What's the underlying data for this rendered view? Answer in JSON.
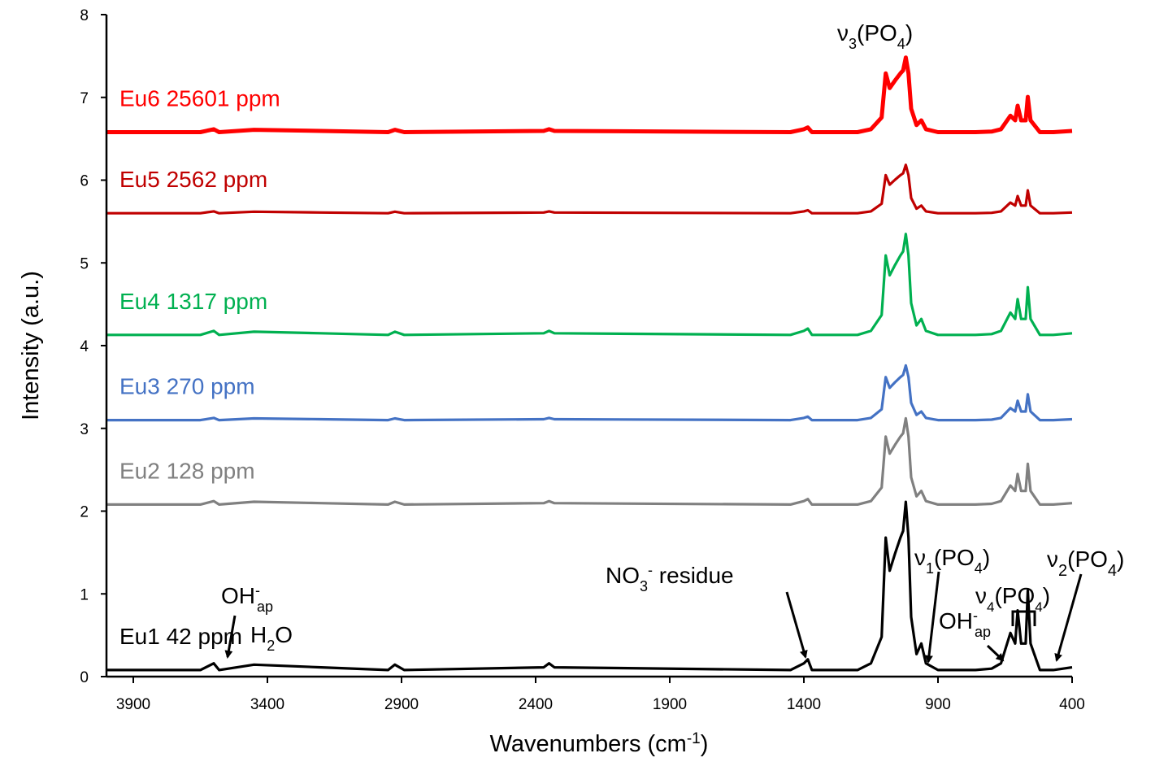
{
  "chart_data": {
    "type": "line",
    "xlabel": "Wavenumbers (cm",
    "xlabel_sup": "-1",
    "xlabel_end": ")",
    "ylabel": "Intensity (a.u.)",
    "xlim": [
      4000,
      400
    ],
    "x_reversed": true,
    "ylim": [
      0,
      8
    ],
    "x_ticks": [
      3900,
      3400,
      2900,
      2400,
      1900,
      1400,
      900,
      400
    ],
    "y_ticks": [
      0,
      1,
      2,
      3,
      4,
      5,
      6,
      7,
      8
    ],
    "grid": false,
    "legend": "inline labels",
    "peak_template": [
      [
        4000,
        0
      ],
      [
        3650,
        0
      ],
      [
        3600,
        0.05
      ],
      [
        3580,
        0
      ],
      [
        3450,
        0.04
      ],
      [
        3200,
        0.02
      ],
      [
        2950,
        0
      ],
      [
        2925,
        0.04
      ],
      [
        2890,
        0
      ],
      [
        2370,
        0.02
      ],
      [
        2350,
        0.05
      ],
      [
        2330,
        0.02
      ],
      [
        1450,
        0
      ],
      [
        1400,
        0.05
      ],
      [
        1385,
        0.08
      ],
      [
        1370,
        0
      ],
      [
        1200,
        0
      ],
      [
        1150,
        0.05
      ],
      [
        1110,
        0.25
      ],
      [
        1095,
        1.0
      ],
      [
        1080,
        0.75
      ],
      [
        1060,
        0.88
      ],
      [
        1040,
        1.0
      ],
      [
        1030,
        1.05
      ],
      [
        1020,
        1.27
      ],
      [
        1010,
        1.0
      ],
      [
        1000,
        0.4
      ],
      [
        980,
        0.12
      ],
      [
        962,
        0.2
      ],
      [
        945,
        0.05
      ],
      [
        900,
        0.0
      ],
      [
        760,
        0.0
      ],
      [
        700,
        0.01
      ],
      [
        665,
        0.05
      ],
      [
        630,
        0.28
      ],
      [
        612,
        0.2
      ],
      [
        603,
        0.45
      ],
      [
        590,
        0.2
      ],
      [
        573,
        0.2
      ],
      [
        565,
        0.6
      ],
      [
        555,
        0.2
      ],
      [
        520,
        0.0
      ],
      [
        470,
        0.0
      ],
      [
        400,
        0.02
      ]
    ],
    "series": [
      {
        "name": "Eu1 42 ppm",
        "color": "#000000",
        "offset": 0.08,
        "scale": 1.6,
        "width": 3.2
      },
      {
        "name": "Eu2 128 ppm",
        "color": "#808080",
        "offset": 2.08,
        "scale": 0.82,
        "width": 3.2
      },
      {
        "name": "Eu3 270 ppm",
        "color": "#4472c4",
        "offset": 3.1,
        "scale": 0.52,
        "width": 3.2
      },
      {
        "name": "Eu4 1317 ppm",
        "color": "#00b050",
        "offset": 4.13,
        "scale": 0.96,
        "width": 3.2
      },
      {
        "name": "Eu5 2562 ppm",
        "color": "#c00000",
        "offset": 5.6,
        "scale": 0.46,
        "width": 3.2
      },
      {
        "name": "Eu6 25601 ppm",
        "color": "#ff0000",
        "offset": 6.58,
        "scale": 0.71,
        "width": 5
      }
    ]
  },
  "annotations": {
    "nu3": {
      "base": "ν",
      "sub": "3",
      "rest": "(PO",
      "sub2": "4",
      "end": ")"
    },
    "nu1": {
      "base": "ν",
      "sub": "1",
      "rest": "(PO",
      "sub2": "4",
      "end": ")"
    },
    "nu2": {
      "base": "ν",
      "sub": "2",
      "rest": "(PO",
      "sub2": "4",
      "end": ")"
    },
    "nu4": {
      "base": "ν",
      "sub": "4",
      "rest": "(PO",
      "sub2": "4",
      "end": ")"
    },
    "no3": {
      "base": "NO",
      "sub": "3",
      "sup": "-",
      "rest": " residue"
    },
    "ohap_left": {
      "base": "OH",
      "sup": "-",
      "sub": "ap"
    },
    "h2o": {
      "base": "H",
      "sub": "2",
      "rest": "O"
    },
    "ohap_right": {
      "base": "OH",
      "sup": "-",
      "sub": "ap"
    }
  }
}
